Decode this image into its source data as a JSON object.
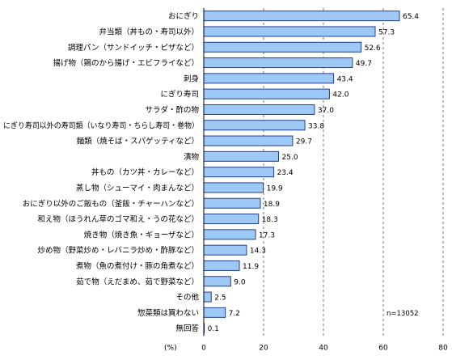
{
  "chart_data": {
    "type": "bar",
    "orientation": "horizontal",
    "categories": [
      "おにぎり",
      "弁当類（丼もの・寿司以外）",
      "調理パン（サンドイッチ・ピザなど）",
      "揚げ物（鶏のから揚げ・エビフライなど）",
      "刺身",
      "にぎり寿司",
      "サラダ・酢の物",
      "にぎり寿司以外の寿司類（いなり寿司・ちらし寿司・巻物）",
      "麺類（焼そば・スパゲッティなど）",
      "漬物",
      "丼もの（カツ丼・カレーなど）",
      "蒸し物（シューマイ・肉まんなど）",
      "おにぎり以外のご飯もの（釜飯・チャーハンなど）",
      "和え物（ほうれん草のゴマ和え・うの花など）",
      "焼き物（焼き魚・ギョーザなど）",
      "炒め物（野菜炒め・レバニラ炒め・酢豚など）",
      "煮物（魚の煮付け・豚の角煮など）",
      "茹で物（えだまめ、茹で野菜など）",
      "その他",
      "惣菜類は買わない",
      "無回答"
    ],
    "values": [
      65.4,
      57.3,
      52.6,
      49.7,
      43.4,
      42.0,
      37.0,
      33.8,
      29.7,
      25.0,
      23.4,
      19.9,
      18.9,
      18.3,
      17.3,
      14.3,
      11.9,
      9.0,
      2.5,
      7.2,
      0.1
    ],
    "value_labels": [
      "65.4",
      "57.3",
      "52.6",
      "49.7",
      "43.4",
      "42.0",
      "37.0",
      "33.8",
      "29.7",
      "25.0",
      "23.4",
      "19.9",
      "18.9",
      "18.3",
      "17.3",
      "14.3",
      "11.9",
      "9.0",
      "2.5",
      "7.2",
      "0.1"
    ],
    "x_ticks": [
      0,
      20,
      40,
      60,
      80
    ],
    "xlim": [
      0,
      80
    ],
    "xlabel": "(%)",
    "annotation": "n=13052",
    "grid": true,
    "colors": {
      "bar_fill": "#9ec8f6",
      "bar_stroke": "#1f3f8f"
    }
  }
}
